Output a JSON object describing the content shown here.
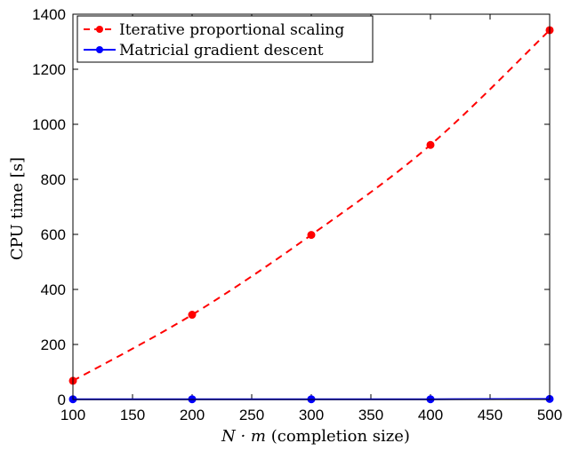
{
  "chart_data": {
    "type": "line",
    "x": [
      100,
      200,
      300,
      400,
      500
    ],
    "xlim": [
      100,
      500
    ],
    "ylim": [
      0,
      1400
    ],
    "xticks": [
      100,
      150,
      200,
      250,
      300,
      350,
      400,
      450,
      500
    ],
    "yticks": [
      0,
      200,
      400,
      600,
      800,
      1000,
      1200,
      1400
    ],
    "xlabel_italic": "N · m",
    "xlabel_rest": " (completion size)",
    "ylabel": "CPU time [s]",
    "grid": false,
    "legend_position": "top-left",
    "series": [
      {
        "name": "Iterative proportional scaling",
        "values": [
          68,
          308,
          598,
          925,
          1342
        ],
        "color": "#ff0000",
        "line_style": "dashed",
        "marker": "circle"
      },
      {
        "name": "Matricial gradient descent",
        "values": [
          1,
          1,
          1,
          1,
          2
        ],
        "color": "#0000ff",
        "line_style": "solid",
        "marker": "circle"
      }
    ]
  }
}
